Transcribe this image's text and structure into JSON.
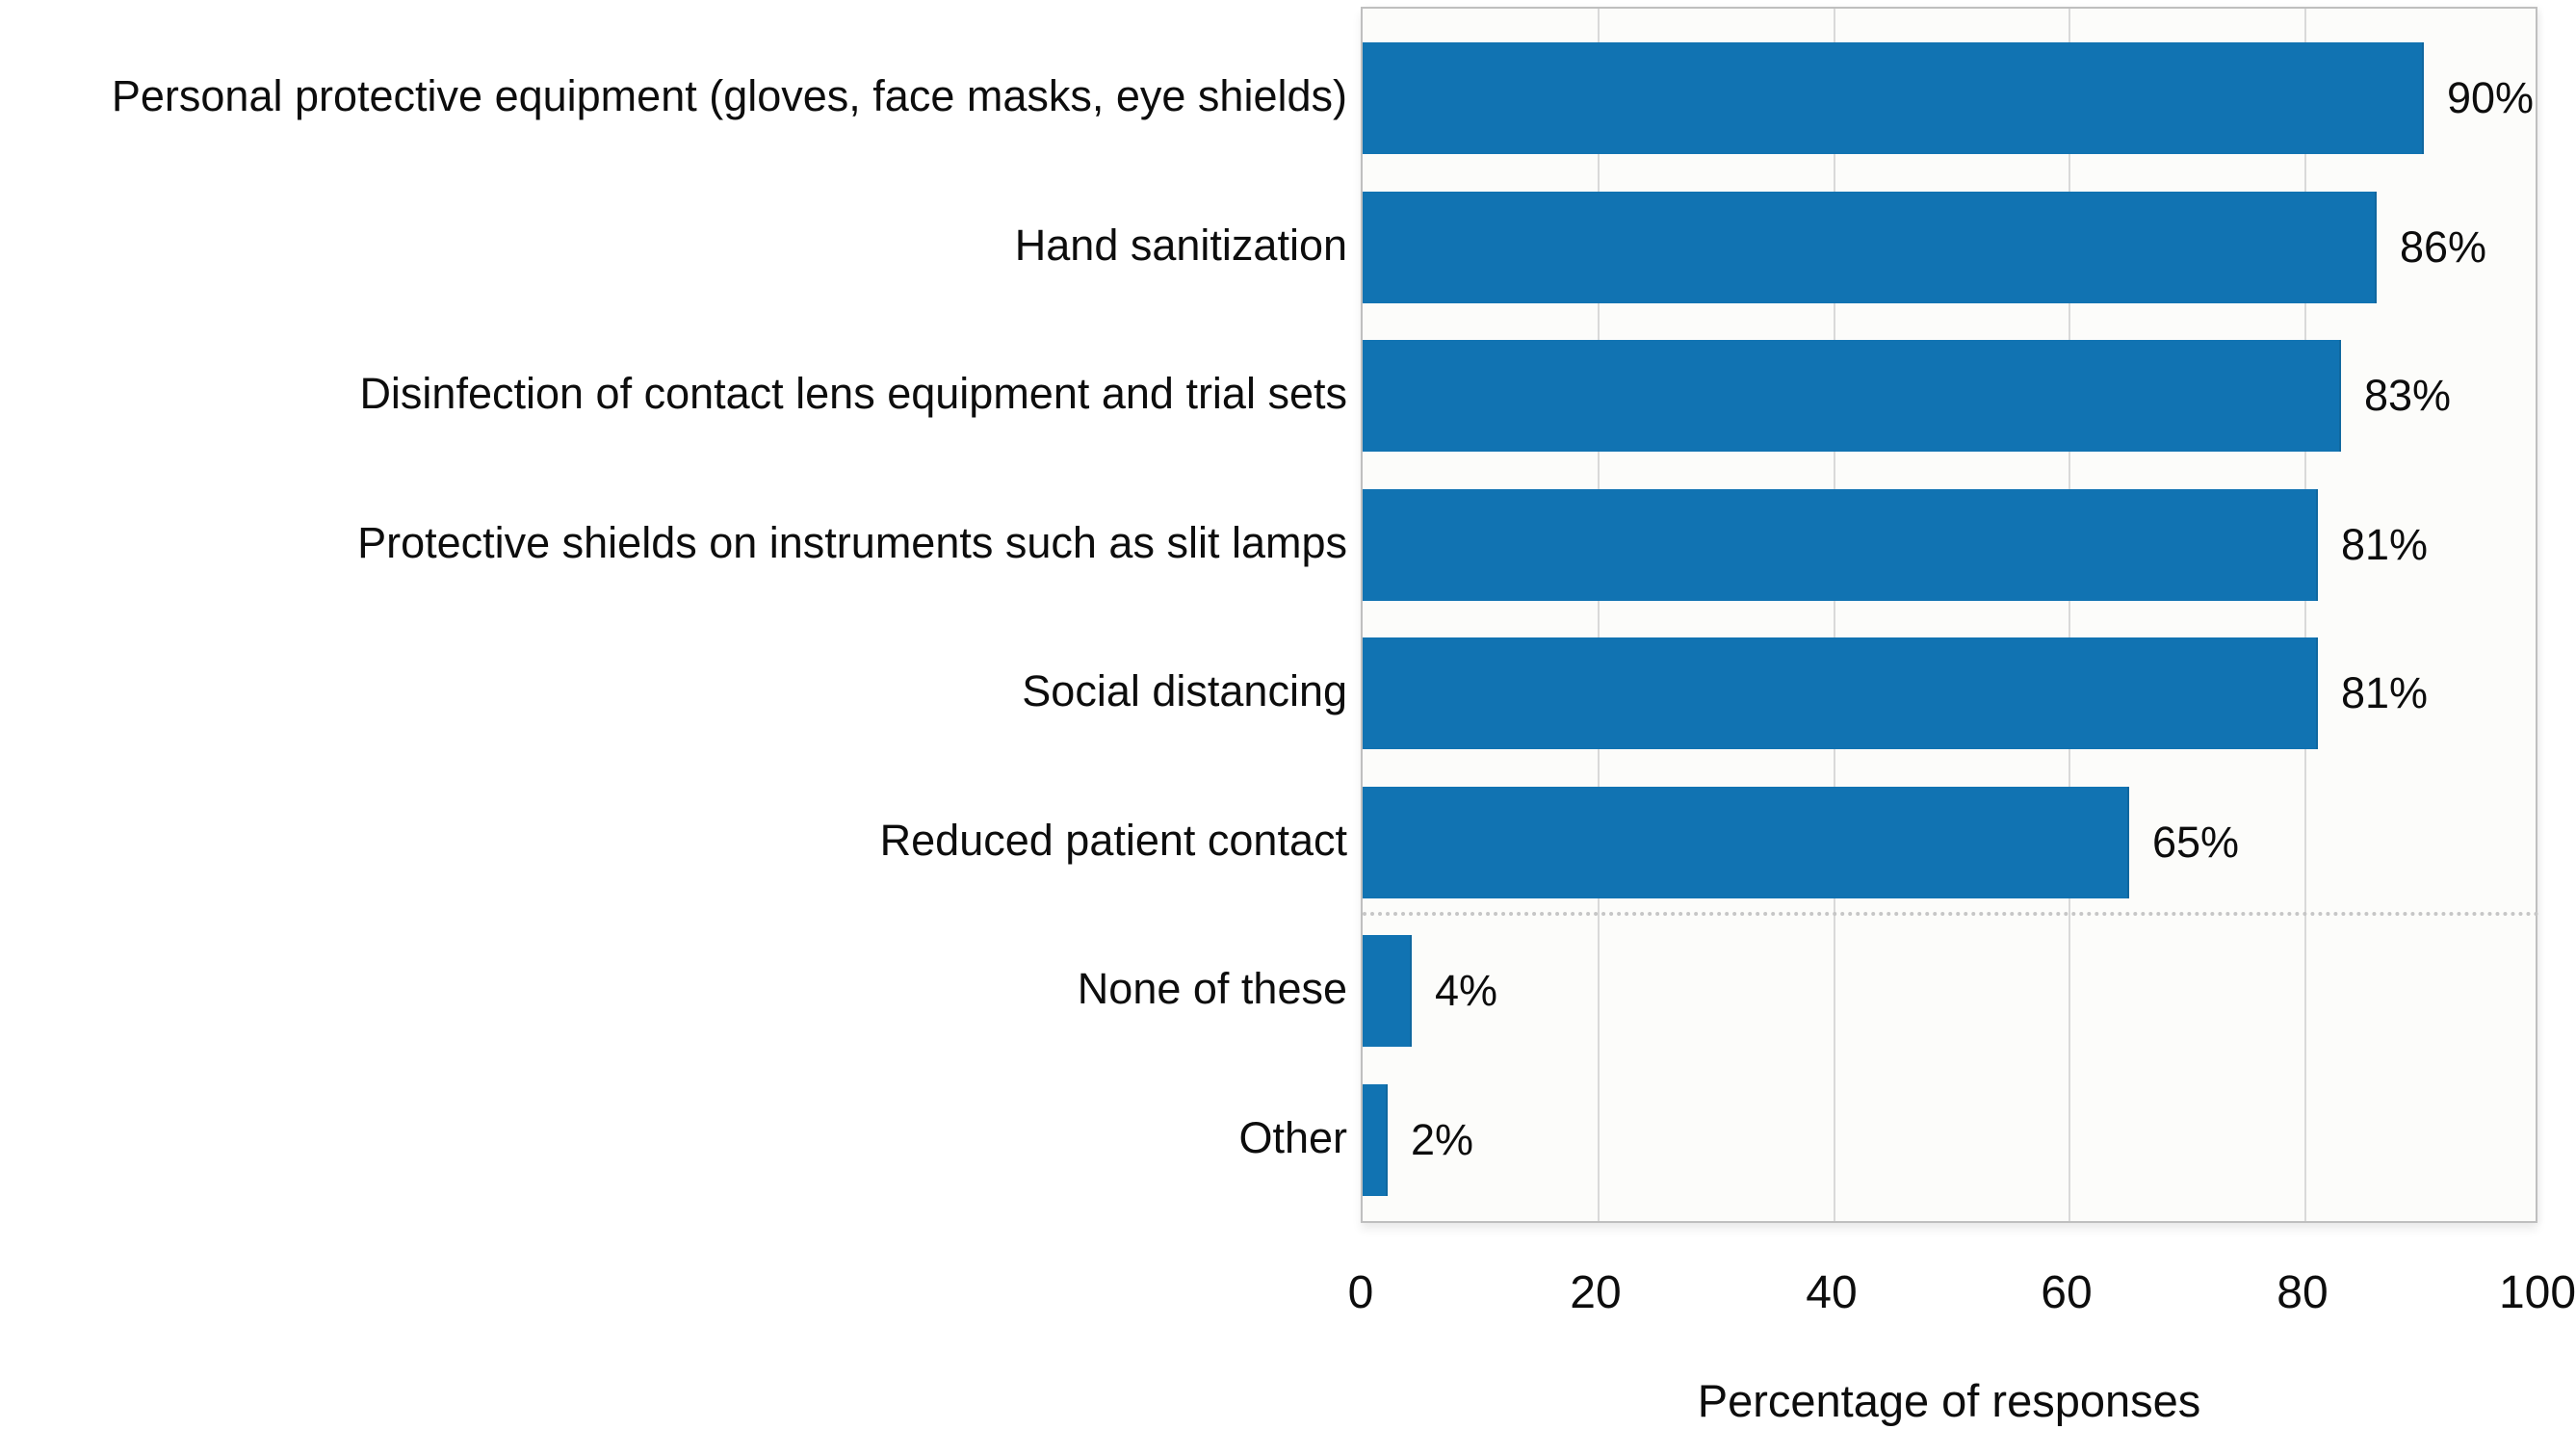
{
  "chart_data": {
    "type": "bar",
    "orientation": "horizontal",
    "categories": [
      "Personal protective equipment (gloves, face masks, eye shields)",
      "Hand sanitization",
      "Disinfection of contact lens equipment and trial sets",
      "Protective shields on instruments such as slit lamps",
      "Social distancing",
      "Reduced patient contact",
      "None of these",
      "Other"
    ],
    "values": [
      90,
      86,
      83,
      81,
      81,
      65,
      4,
      2
    ],
    "value_labels": [
      "90%",
      "86%",
      "83%",
      "81%",
      "81%",
      "65%",
      "4%",
      "2%"
    ],
    "xlabel": "Percentage of responses",
    "xticks": [
      0,
      20,
      40,
      60,
      80,
      100
    ],
    "xtick_labels": [
      "0",
      "20",
      "40",
      "60",
      "80",
      "100"
    ],
    "xlim": [
      0,
      100
    ],
    "grid": "vertical-light-gray",
    "separator_after_index": 5,
    "legend": "none",
    "title": ""
  },
  "colors": {
    "bar": "#1173b2",
    "gridline": "#d9d9d9",
    "plot_border": "#bfbfbf",
    "plot_background": "#fcfcfa",
    "separator": "#c6c6c6",
    "text": "#0d0d0d"
  }
}
